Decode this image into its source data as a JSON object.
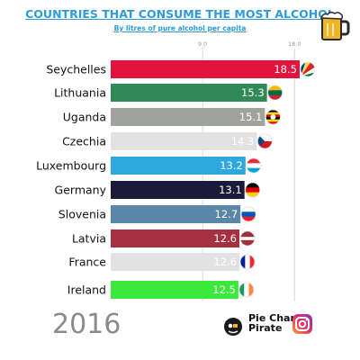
{
  "header": {
    "title": "COUNTRIES THAT CONSUME THE MOST ALCOHOL",
    "subtitle": "By litres of pure alcohol per capita"
  },
  "footer": {
    "year": "2016",
    "brand_line1": "Pie Chart",
    "brand_line2": "Pirate"
  },
  "icons": {
    "beer": "beer-mug-icon",
    "logo": "pirate-logo-icon",
    "social": "instagram-icon"
  },
  "chart_data": {
    "type": "bar",
    "orientation": "horizontal",
    "title": "COUNTRIES THAT CONSUME THE MOST ALCOHOL",
    "subtitle": "By litres of pure alcohol per capita",
    "xlim": [
      0,
      18.7
    ],
    "x_ticks": [
      {
        "value": 9.0,
        "label": "9.0"
      },
      {
        "value": 18.0,
        "label": "18.0"
      }
    ],
    "grid": true,
    "categories": [
      "Seychelles",
      "Lithuania",
      "Uganda",
      "Czechia",
      "Luxembourg",
      "Germany",
      "Slovenia",
      "Latvia",
      "France",
      "Ireland"
    ],
    "values": [
      18.5,
      15.3,
      15.1,
      14.3,
      13.2,
      13.1,
      12.7,
      12.6,
      12.6,
      12.5
    ],
    "value_labels": [
      "18.5",
      "15.3",
      "15.1",
      "14.3",
      "13.2",
      "13.1",
      "12.7",
      "12.6",
      "12.6",
      "12.5"
    ],
    "bar_colors": [
      "#e0143c",
      "#2f8a55",
      "#a0a39a",
      "#e2e2e2",
      "#2fa8df",
      "#1b1a3a",
      "#5a87a8",
      "#a5303f",
      "#e2e2e2",
      "#3be83b"
    ],
    "flags": [
      "seychelles-flag-icon",
      "lithuania-flag-icon",
      "uganda-flag-icon",
      "czechia-flag-icon",
      "luxembourg-flag-icon",
      "germany-flag-icon",
      "slovenia-flag-icon",
      "latvia-flag-icon",
      "france-flag-icon",
      "ireland-flag-icon"
    ]
  }
}
